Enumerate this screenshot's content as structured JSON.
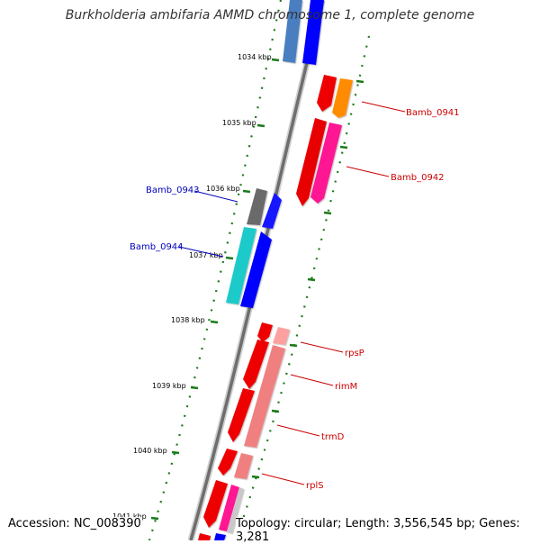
{
  "title": "Burkholderia ambifaria AMMD chromosome 1, complete genome",
  "accession_text": "Accession: NC_008390",
  "topology_text": "Topology: circular; Length: 3,556,545 bp; Genes: 3,281",
  "colors": {
    "backbone": "#808080",
    "tick": "#1a7a1a",
    "forward_label": "#cc0000",
    "reverse_label": "#0000bb"
  },
  "ticks": [
    "1034 kbp",
    "1035 kbp",
    "1036 kbp",
    "1037 kbp",
    "1038 kbp",
    "1039 kbp",
    "1040 kbp",
    "1041 kbp"
  ],
  "gene_labels": [
    {
      "text": "Bamb_0941",
      "strand": "forward"
    },
    {
      "text": "Bamb_0942",
      "strand": "forward"
    },
    {
      "text": "Bamb_0943",
      "strand": "reverse"
    },
    {
      "text": "Bamb_0944",
      "strand": "reverse"
    },
    {
      "text": "rpsP",
      "strand": "forward"
    },
    {
      "text": "rimM",
      "strand": "forward"
    },
    {
      "text": "trmD",
      "strand": "forward"
    },
    {
      "text": "rplS",
      "strand": "forward"
    }
  ]
}
